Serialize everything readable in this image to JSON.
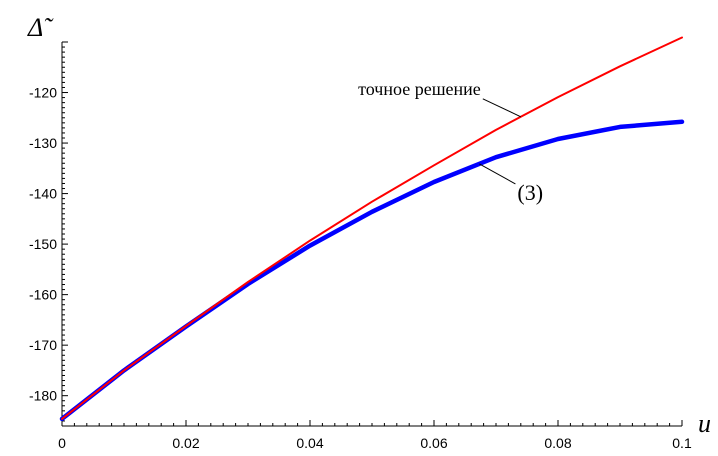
{
  "chart_data": {
    "type": "line",
    "title": "",
    "xlabel": "u",
    "ylabel": "Δ̃",
    "xlim": [
      0,
      0.1
    ],
    "ylim": [
      -186,
      -110
    ],
    "grid": false,
    "x_ticks": [
      0,
      0.02,
      0.04,
      0.06,
      0.08,
      0.1
    ],
    "x_tick_labels": [
      "0",
      "0.02",
      "0.04",
      "0.06",
      "0.08",
      "0.1"
    ],
    "y_ticks": [
      -180,
      -170,
      -160,
      -150,
      -140,
      -130,
      -120
    ],
    "y_tick_labels": [
      "-180",
      "-170",
      "-160",
      "-150",
      "-140",
      "-130",
      "-120"
    ],
    "series": [
      {
        "name": "точное решение",
        "color": "#ff0000",
        "x": [
          0,
          0.01,
          0.02,
          0.03,
          0.04,
          0.05,
          0.06,
          0.07,
          0.08,
          0.09,
          0.1
        ],
        "y": [
          -184.6,
          -175.0,
          -166.2,
          -157.5,
          -149.3,
          -141.6,
          -134.4,
          -127.4,
          -120.9,
          -114.8,
          -109.1
        ]
      },
      {
        "name": "(3)",
        "color": "#0000ff",
        "x": [
          0,
          0.01,
          0.02,
          0.03,
          0.04,
          0.05,
          0.06,
          0.07,
          0.08,
          0.09,
          0.1
        ],
        "y": [
          -184.6,
          -175.0,
          -166.3,
          -157.9,
          -150.3,
          -143.6,
          -137.7,
          -132.8,
          -129.2,
          -126.8,
          -125.8
        ]
      }
    ],
    "annotations": [
      {
        "text": "точное решение",
        "series": 0,
        "x": 0.074
      },
      {
        "text": "(3)",
        "series": 1,
        "x": 0.077
      }
    ]
  }
}
